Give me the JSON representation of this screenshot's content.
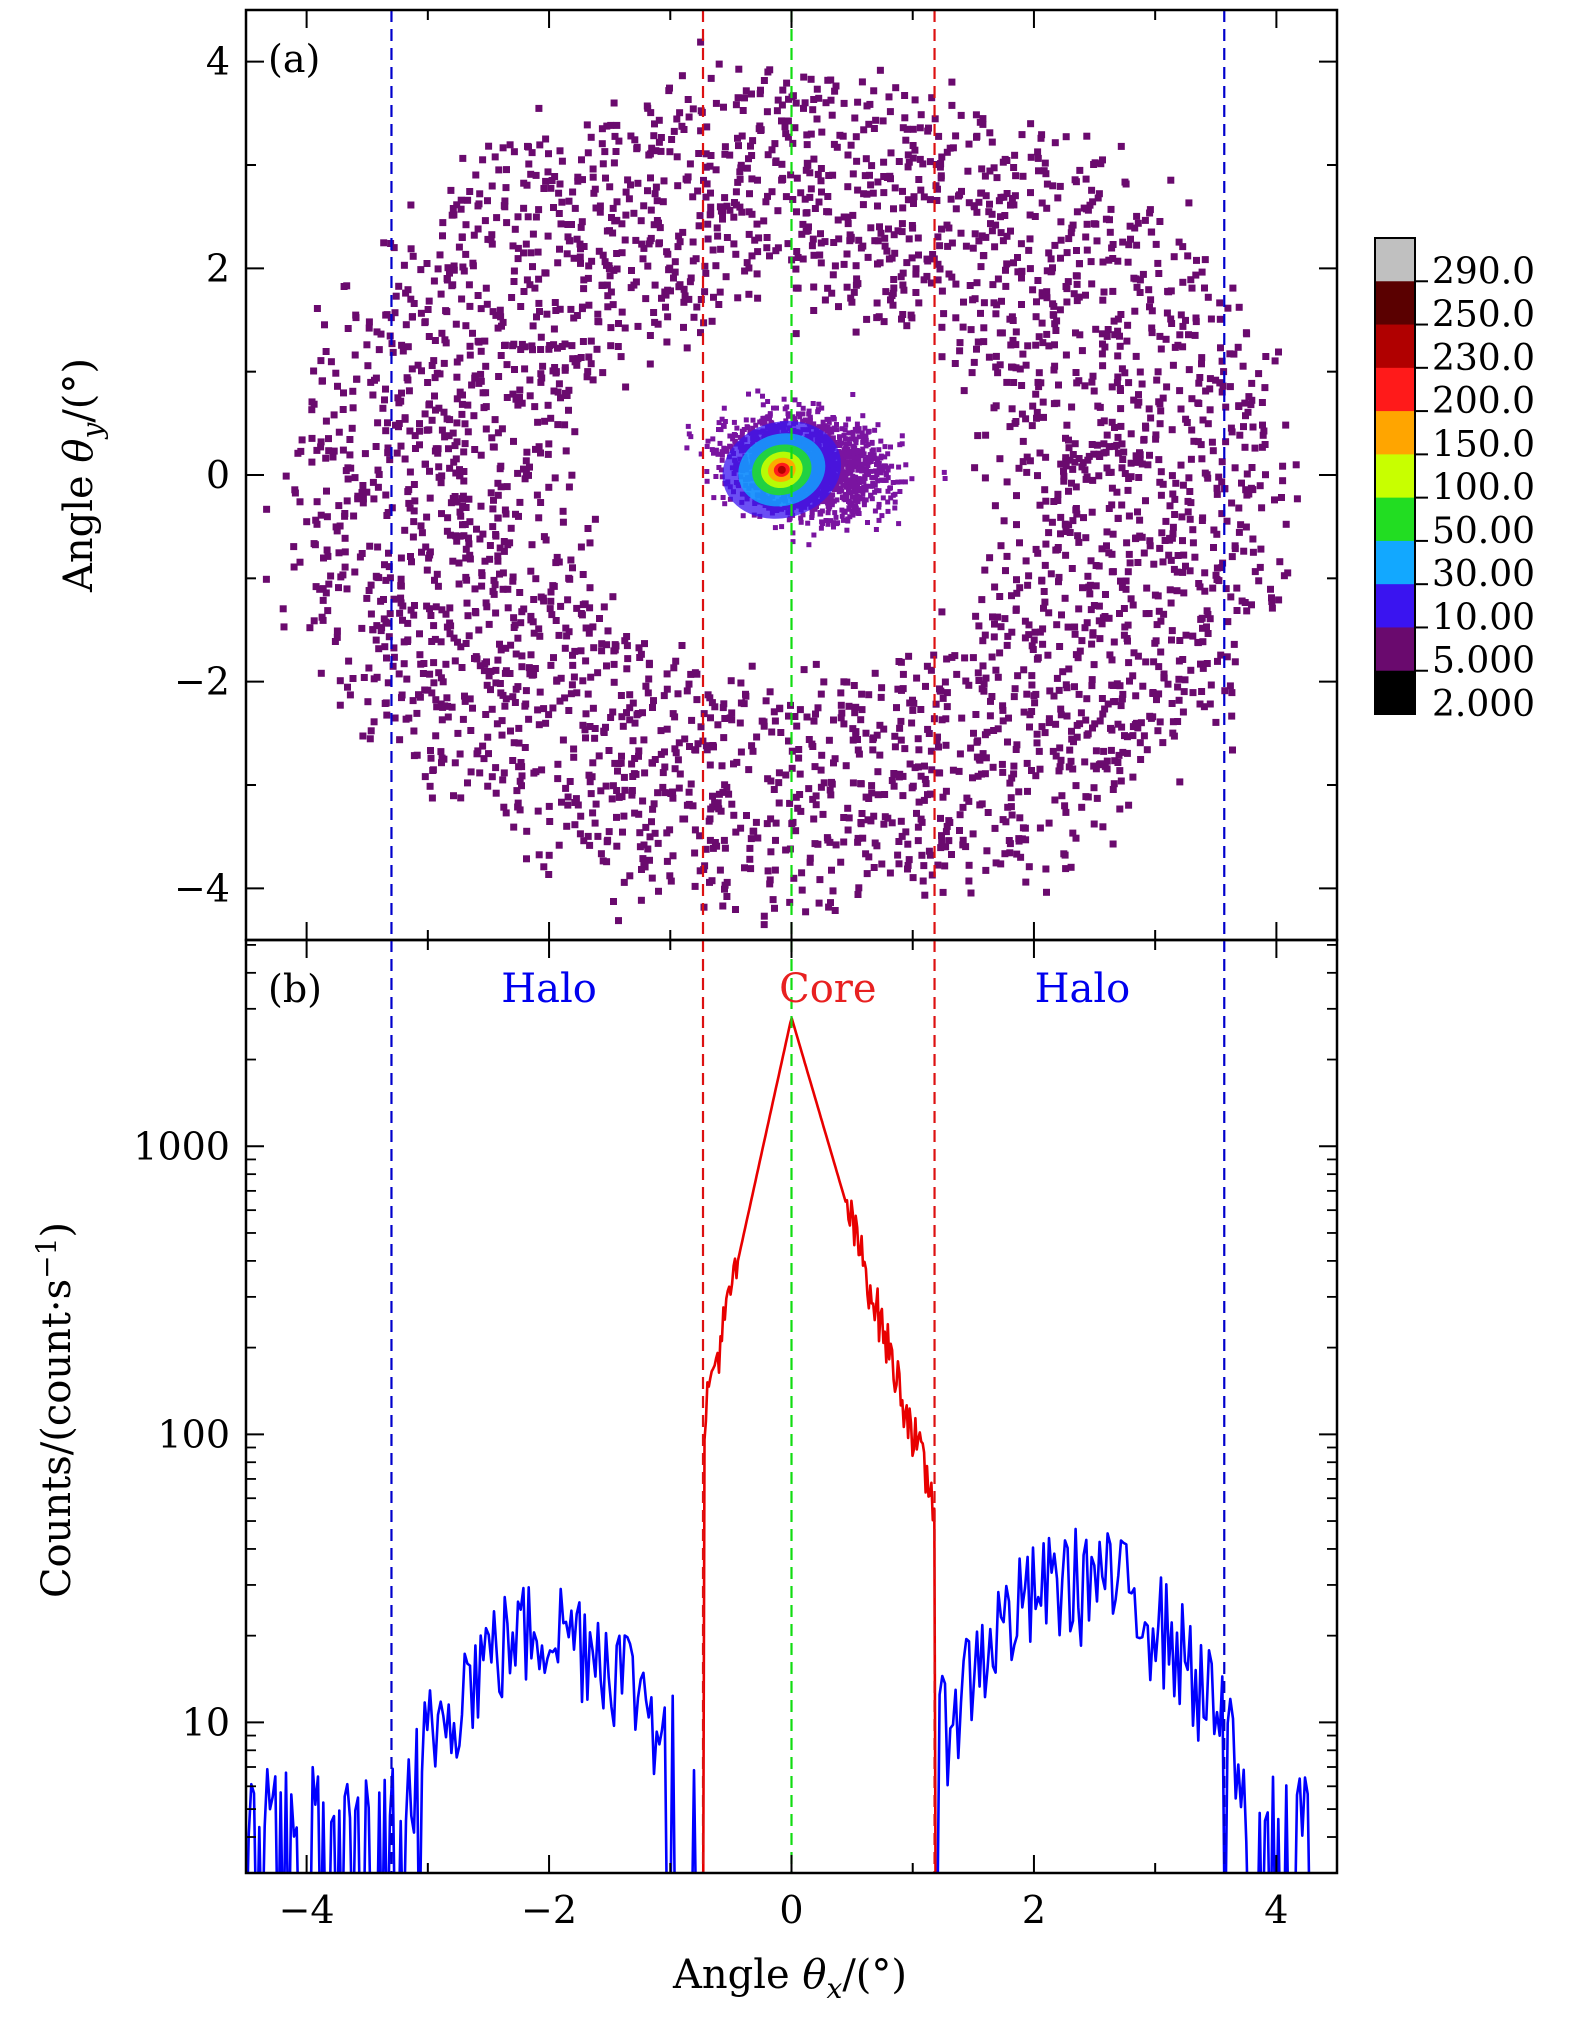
{
  "figure": {
    "panel_a_label": "(a)",
    "panel_b_label": "(b)",
    "x_axis_label_text": "Angle ",
    "x_axis_label_symbol": "θ",
    "x_axis_label_subscript": "x",
    "x_axis_label_unit": "/(°)",
    "y_axis_a_label_text": "Angle ",
    "y_axis_a_label_symbol": "θ",
    "y_axis_a_label_subscript": "y",
    "y_axis_a_label_unit": "/(°)",
    "y_axis_b_label_main": "Counts/(count·s",
    "y_axis_b_label_sup": "−1",
    "y_axis_b_label_close": ")",
    "region_labels": [
      {
        "text": "Halo",
        "color": "#0000ee",
        "x": -2.0
      },
      {
        "text": "Core",
        "color": "#e82020",
        "x": 0.3
      },
      {
        "text": "Halo",
        "color": "#0000ee",
        "x": 2.4
      }
    ],
    "colors": {
      "halo_line": "#0000ff",
      "core_line": "#e80000",
      "blue_dash": "#0000cc",
      "red_dash": "#dd1111",
      "green_dash": "#11dd11",
      "scatter_point": "#6a0a6e"
    }
  },
  "chart_data": [
    {
      "type": "scatter",
      "panel": "a",
      "title": "",
      "xlabel": "Angle θx/(°)",
      "ylabel": "Angle θy/(°)",
      "xlim": [
        -4.5,
        4.5
      ],
      "ylim": [
        -4.5,
        4.5
      ],
      "x_ticks": [
        -4,
        -2,
        0,
        2,
        4
      ],
      "y_ticks": [
        -4,
        -2,
        0,
        2,
        4
      ],
      "y_tick_labels": [
        "−4",
        "−2",
        "0",
        "2",
        "4"
      ],
      "halo_ring": {
        "center": [
          0.0,
          -0.2
        ],
        "inner_radius": 1.9,
        "outer_radius": 4.0,
        "points": 3400
      },
      "core": {
        "center": [
          0.0,
          0.1
        ],
        "sigma_x": 0.32,
        "sigma_y": 0.28
      },
      "vertical_lines": [
        {
          "x": -3.3,
          "color": "blue",
          "style": "dashed"
        },
        {
          "x": -0.73,
          "color": "red",
          "style": "dashed"
        },
        {
          "x": 0.0,
          "color": "green",
          "style": "dashed"
        },
        {
          "x": 1.18,
          "color": "red",
          "style": "dashed"
        },
        {
          "x": 3.57,
          "color": "blue",
          "style": "dashed"
        }
      ],
      "colorbar": {
        "labels": [
          "290.0",
          "250.0",
          "230.0",
          "200.0",
          "150.0",
          "100.0",
          "50.00",
          "30.00",
          "10.00",
          "5.000",
          "2.000"
        ],
        "colors": [
          "#c0c0c0",
          "#5a0000",
          "#b00000",
          "#ff1a1a",
          "#ffa500",
          "#c8ff00",
          "#22dd22",
          "#12a8ff",
          "#3a14f0",
          "#6a0a6e",
          "#000000"
        ]
      }
    },
    {
      "type": "line",
      "panel": "b",
      "title": "",
      "xlabel": "Angle θx/(°)",
      "ylabel": "Counts/(count·s−1)",
      "xlim": [
        -4.5,
        4.5
      ],
      "yscale": "log",
      "ylim": [
        3,
        5200
      ],
      "x_ticks": [
        -4,
        -2,
        0,
        2,
        4
      ],
      "x_tick_labels": [
        "−4",
        "−2",
        "0",
        "2",
        "4"
      ],
      "y_ticks": [
        10,
        100,
        1000
      ],
      "y_tick_labels": [
        "10",
        "100",
        "1000"
      ],
      "series": [
        {
          "name": "Halo (left)",
          "color": "blue",
          "x_range": [
            -4.5,
            -0.73
          ],
          "peak_x": -2.0,
          "peak_value": 22,
          "baseline": 4
        },
        {
          "name": "Core",
          "color": "red",
          "x_range": [
            -0.73,
            1.2
          ],
          "peak_x": 0.0,
          "peak_value": 2800
        },
        {
          "name": "Halo (right)",
          "color": "blue",
          "x_range": [
            1.2,
            4.3
          ],
          "peak_x": 2.4,
          "peak_value": 33,
          "baseline": 4
        }
      ]
    }
  ]
}
